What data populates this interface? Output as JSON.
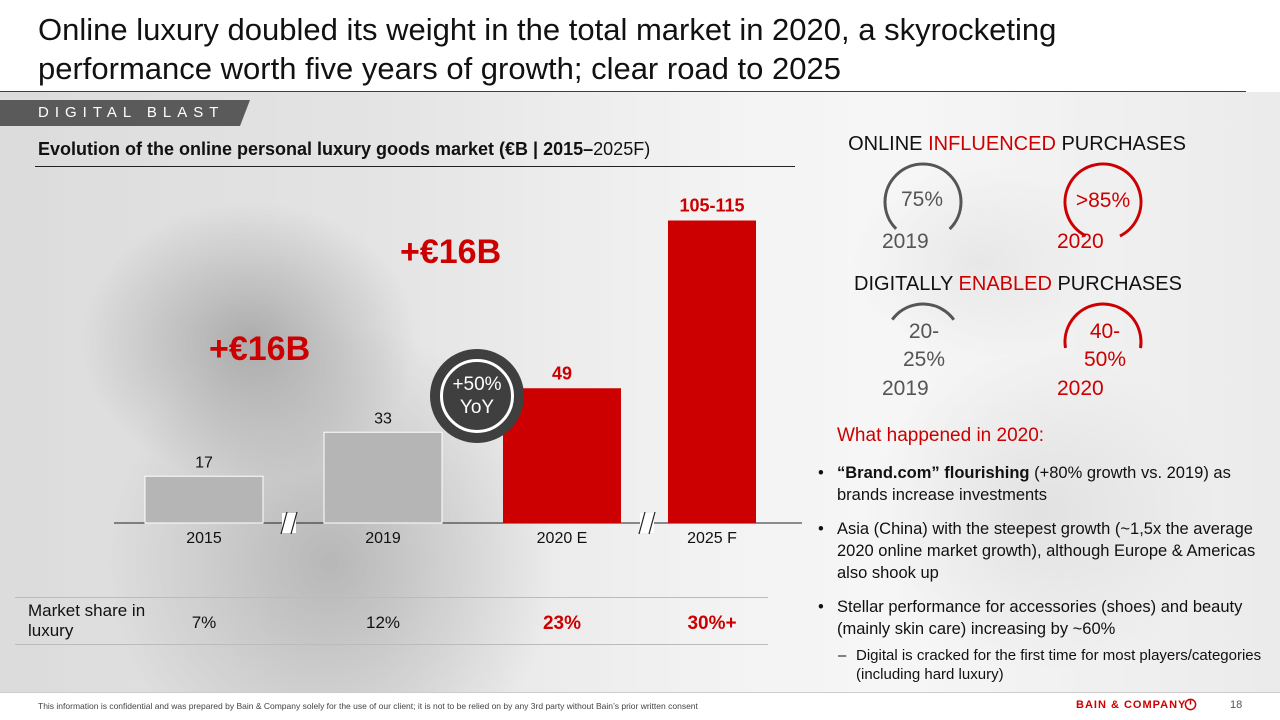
{
  "headline": "Online luxury doubled its weight in the total market in 2020, a skyrocketing performance worth five years of growth; clear road to 2025",
  "tag": "DIGITAL BLAST",
  "chart_title_bold": "Evolution of the online personal luxury goods market (€B | 2015–",
  "chart_title_normal": "2025F)",
  "chart_data": {
    "type": "bar",
    "title": "Evolution of the online personal luxury goods market (€B | 2015–2025F)",
    "categories": [
      "2015",
      "2019",
      "2020 E",
      "2025 F"
    ],
    "values": [
      17,
      33,
      49,
      110
    ],
    "value_labels": [
      "17",
      "33",
      "49",
      "105-115"
    ],
    "colors": [
      "#b5b5b5",
      "#b5b5b5",
      "#cc0000",
      "#cc0000"
    ],
    "ylim": [
      0,
      120
    ],
    "axis_breaks": [
      "2015-2019",
      "2020 E-2025 F"
    ],
    "annotations": [
      "+€16B",
      "+€16B",
      "+50% YoY"
    ],
    "market_share_label": "Market share in luxury",
    "market_share": [
      "7%",
      "12%",
      "23%",
      "30%+"
    ]
  },
  "deltas": [
    "+€16B",
    "+€16B"
  ],
  "yoy": {
    "line1": "+50%",
    "line2": "YoY"
  },
  "market_share_label": "Market share in luxury",
  "market_share": [
    "7%",
    "12%",
    "23%",
    "30%+"
  ],
  "online_influenced": {
    "prefix": "ONLINE ",
    "highlight": "INFLUENCED",
    "suffix": " PURCHASES",
    "left": {
      "value": "75%",
      "year": "2019",
      "fraction": 0.75
    },
    "right": {
      "value": ">85%",
      "year": "2020",
      "fraction": 0.85
    }
  },
  "digitally_enabled": {
    "prefix": "DIGITALLY ",
    "highlight": "ENABLED",
    "suffix": " PURCHASES",
    "left": {
      "value_line1": "20-",
      "value_line2": "25%",
      "year": "2019",
      "fraction": 0.3
    },
    "right": {
      "value_line1": "40-",
      "value_line2": "50%",
      "year": "2020",
      "fraction": 0.55
    }
  },
  "what_happened": "What happened in 2020:",
  "bullets": [
    {
      "bold": "“Brand.com” flourishing",
      "text": " (+80% growth vs. 2019) as brands increase investments"
    },
    {
      "bold": "",
      "text": "Asia (China) with the steepest growth (~1,5x the average 2020 online market growth), although Europe & Americas also shook up"
    },
    {
      "bold": "",
      "text": "Stellar performance for accessories (shoes) and beauty (mainly skin care) increasing by ~60%"
    }
  ],
  "sub_bullet": "Digital is cracked for the first time for most players/categories (including hard luxury)",
  "disclaimer": "This information is confidential and was prepared by Bain & Company solely for the use of our client; it is not to be relied on by any 3rd party without Bain’s prior written consent",
  "brand": "BAIN & COMPANY",
  "page_number": "18",
  "colors": {
    "accent": "#cc0000",
    "gray_bar": "#b5b5b5"
  }
}
